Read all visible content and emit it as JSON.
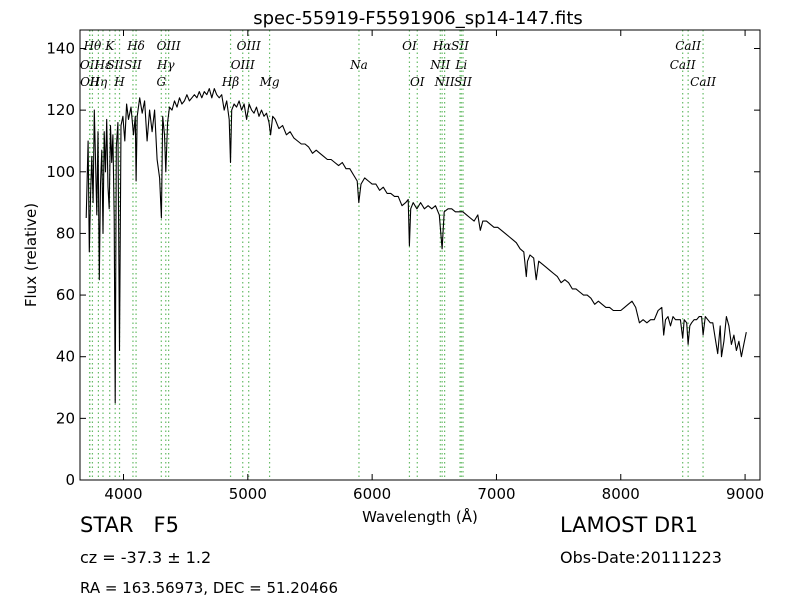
{
  "chart_data": {
    "type": "line",
    "title": "spec-55919-F5591906_sp14-147.fits",
    "xlabel": "Wavelength (Å)",
    "ylabel": "Flux (relative)",
    "xlim": [
      3650,
      9120
    ],
    "ylim": [
      0,
      146
    ],
    "xticks": [
      4000,
      5000,
      6000,
      7000,
      8000,
      9000
    ],
    "yticks": [
      0,
      20,
      40,
      60,
      80,
      100,
      120,
      140
    ],
    "grid": false,
    "line_color": "#000000",
    "marker_color": "#66bb66",
    "series": [
      {
        "values": [
          [
            3700,
            85
          ],
          [
            3715,
            110
          ],
          [
            3725,
            74
          ],
          [
            3735,
            93
          ],
          [
            3745,
            105
          ],
          [
            3755,
            90
          ],
          [
            3765,
            120
          ],
          [
            3775,
            104
          ],
          [
            3785,
            86
          ],
          [
            3795,
            113
          ],
          [
            3805,
            65
          ],
          [
            3815,
            96
          ],
          [
            3825,
            107
          ],
          [
            3835,
            80
          ],
          [
            3845,
            113
          ],
          [
            3855,
            100
          ],
          [
            3865,
            117
          ],
          [
            3875,
            95
          ],
          [
            3885,
            88
          ],
          [
            3895,
            115
          ],
          [
            3905,
            103
          ],
          [
            3915,
            112
          ],
          [
            3925,
            85
          ],
          [
            3933,
            25
          ],
          [
            3942,
            108
          ],
          [
            3955,
            116
          ],
          [
            3968,
            42
          ],
          [
            3980,
            115
          ],
          [
            3995,
            118
          ],
          [
            4010,
            110
          ],
          [
            4025,
            122
          ],
          [
            4040,
            117
          ],
          [
            4060,
            121
          ],
          [
            4080,
            112
          ],
          [
            4095,
            118
          ],
          [
            4101,
            97
          ],
          [
            4110,
            118
          ],
          [
            4130,
            124
          ],
          [
            4150,
            119
          ],
          [
            4170,
            123
          ],
          [
            4190,
            110
          ],
          [
            4210,
            120
          ],
          [
            4230,
            113
          ],
          [
            4250,
            120
          ],
          [
            4270,
            104
          ],
          [
            4290,
            98
          ],
          [
            4305,
            85
          ],
          [
            4315,
            118
          ],
          [
            4330,
            112
          ],
          [
            4340,
            100
          ],
          [
            4355,
            116
          ],
          [
            4370,
            121
          ],
          [
            4390,
            120
          ],
          [
            4410,
            123
          ],
          [
            4430,
            121
          ],
          [
            4450,
            124
          ],
          [
            4470,
            122
          ],
          [
            4490,
            123
          ],
          [
            4510,
            125
          ],
          [
            4530,
            123
          ],
          [
            4550,
            124
          ],
          [
            4570,
            125
          ],
          [
            4590,
            124
          ],
          [
            4610,
            126
          ],
          [
            4630,
            124
          ],
          [
            4650,
            126
          ],
          [
            4670,
            125
          ],
          [
            4690,
            127
          ],
          [
            4710,
            124
          ],
          [
            4730,
            127
          ],
          [
            4750,
            125
          ],
          [
            4770,
            124
          ],
          [
            4790,
            125
          ],
          [
            4810,
            120
          ],
          [
            4830,
            123
          ],
          [
            4850,
            117
          ],
          [
            4861,
            103
          ],
          [
            4870,
            120
          ],
          [
            4890,
            122
          ],
          [
            4910,
            121
          ],
          [
            4930,
            123
          ],
          [
            4950,
            120
          ],
          [
            4970,
            122
          ],
          [
            4990,
            117
          ],
          [
            5010,
            122
          ],
          [
            5030,
            120
          ],
          [
            5050,
            119
          ],
          [
            5070,
            121
          ],
          [
            5090,
            118
          ],
          [
            5110,
            120
          ],
          [
            5130,
            118
          ],
          [
            5150,
            119
          ],
          [
            5170,
            116
          ],
          [
            5183,
            112
          ],
          [
            5200,
            118
          ],
          [
            5220,
            117
          ],
          [
            5250,
            114
          ],
          [
            5280,
            115
          ],
          [
            5310,
            112
          ],
          [
            5340,
            113
          ],
          [
            5370,
            111
          ],
          [
            5400,
            110
          ],
          [
            5430,
            109
          ],
          [
            5460,
            109
          ],
          [
            5490,
            108
          ],
          [
            5520,
            106
          ],
          [
            5550,
            107
          ],
          [
            5580,
            106
          ],
          [
            5610,
            105
          ],
          [
            5640,
            104
          ],
          [
            5670,
            104
          ],
          [
            5700,
            103
          ],
          [
            5730,
            102
          ],
          [
            5760,
            103
          ],
          [
            5790,
            101
          ],
          [
            5820,
            101
          ],
          [
            5850,
            99
          ],
          [
            5880,
            97
          ],
          [
            5893,
            90
          ],
          [
            5910,
            96
          ],
          [
            5940,
            98
          ],
          [
            5970,
            97
          ],
          [
            6000,
            96
          ],
          [
            6030,
            96
          ],
          [
            6060,
            94
          ],
          [
            6090,
            95
          ],
          [
            6120,
            93
          ],
          [
            6150,
            93
          ],
          [
            6180,
            92
          ],
          [
            6210,
            92
          ],
          [
            6240,
            89
          ],
          [
            6270,
            90
          ],
          [
            6290,
            91
          ],
          [
            6300,
            76
          ],
          [
            6310,
            88
          ],
          [
            6330,
            90
          ],
          [
            6360,
            88
          ],
          [
            6390,
            90
          ],
          [
            6420,
            88
          ],
          [
            6450,
            89
          ],
          [
            6480,
            88
          ],
          [
            6510,
            89
          ],
          [
            6540,
            86
          ],
          [
            6563,
            75
          ],
          [
            6580,
            87
          ],
          [
            6610,
            88
          ],
          [
            6640,
            88
          ],
          [
            6670,
            87
          ],
          [
            6700,
            87
          ],
          [
            6730,
            87
          ],
          [
            6760,
            86
          ],
          [
            6790,
            85
          ],
          [
            6820,
            84
          ],
          [
            6850,
            86
          ],
          [
            6870,
            81
          ],
          [
            6890,
            84
          ],
          [
            6920,
            84
          ],
          [
            6950,
            83
          ],
          [
            6980,
            82
          ],
          [
            7010,
            82
          ],
          [
            7040,
            81
          ],
          [
            7070,
            80
          ],
          [
            7100,
            79
          ],
          [
            7130,
            78
          ],
          [
            7160,
            77
          ],
          [
            7190,
            75
          ],
          [
            7220,
            74
          ],
          [
            7240,
            66
          ],
          [
            7250,
            71
          ],
          [
            7270,
            73
          ],
          [
            7300,
            72
          ],
          [
            7320,
            65
          ],
          [
            7340,
            71
          ],
          [
            7370,
            70
          ],
          [
            7400,
            69
          ],
          [
            7430,
            68
          ],
          [
            7460,
            67
          ],
          [
            7490,
            66
          ],
          [
            7520,
            64
          ],
          [
            7550,
            65
          ],
          [
            7580,
            64
          ],
          [
            7610,
            62
          ],
          [
            7640,
            62
          ],
          [
            7670,
            61
          ],
          [
            7700,
            60
          ],
          [
            7730,
            60
          ],
          [
            7760,
            59
          ],
          [
            7790,
            57
          ],
          [
            7820,
            58
          ],
          [
            7850,
            57
          ],
          [
            7880,
            56
          ],
          [
            7910,
            56
          ],
          [
            7940,
            55
          ],
          [
            7970,
            55
          ],
          [
            8000,
            55
          ],
          [
            8030,
            56
          ],
          [
            8060,
            57
          ],
          [
            8090,
            58
          ],
          [
            8120,
            56
          ],
          [
            8150,
            51
          ],
          [
            8180,
            52
          ],
          [
            8210,
            51
          ],
          [
            8240,
            52
          ],
          [
            8270,
            52
          ],
          [
            8300,
            55
          ],
          [
            8330,
            56
          ],
          [
            8345,
            47
          ],
          [
            8360,
            52
          ],
          [
            8380,
            53
          ],
          [
            8400,
            50
          ],
          [
            8420,
            53
          ],
          [
            8440,
            52
          ],
          [
            8460,
            52
          ],
          [
            8480,
            52
          ],
          [
            8498,
            46
          ],
          [
            8510,
            52
          ],
          [
            8530,
            51
          ],
          [
            8542,
            44
          ],
          [
            8555,
            50
          ],
          [
            8570,
            51
          ],
          [
            8590,
            52
          ],
          [
            8610,
            52
          ],
          [
            8630,
            53
          ],
          [
            8650,
            53
          ],
          [
            8662,
            47
          ],
          [
            8680,
            53
          ],
          [
            8700,
            52
          ],
          [
            8720,
            51
          ],
          [
            8740,
            51
          ],
          [
            8760,
            46
          ],
          [
            8780,
            41
          ],
          [
            8800,
            50
          ],
          [
            8810,
            40
          ],
          [
            8830,
            45
          ],
          [
            8850,
            53
          ],
          [
            8870,
            50
          ],
          [
            8890,
            44
          ],
          [
            8910,
            47
          ],
          [
            8930,
            42
          ],
          [
            8950,
            45
          ],
          [
            8970,
            40
          ],
          [
            8990,
            44
          ],
          [
            9010,
            48
          ]
        ]
      }
    ],
    "line_markers": [
      {
        "wave": 3727,
        "label": "OII",
        "tier": 1
      },
      {
        "wave": 3729,
        "label": "OII",
        "tier": 2
      },
      {
        "wave": 3750,
        "label": "Hθ",
        "tier": 0
      },
      {
        "wave": 3798,
        "label": "Hη",
        "tier": 2
      },
      {
        "wave": 3835,
        "label": "Hε",
        "tier": 1
      },
      {
        "wave": 3889,
        "label": "K",
        "tier": 0
      },
      {
        "wave": 3933,
        "label": "SII",
        "tier": 1
      },
      {
        "wave": 3968,
        "label": "H",
        "tier": 2
      },
      {
        "wave": 4101,
        "label": "Hδ",
        "tier": 0
      },
      {
        "wave": 4076,
        "label": "SII",
        "tier": 1
      },
      {
        "wave": 4304,
        "label": "G",
        "tier": 2
      },
      {
        "wave": 4340,
        "label": "Hγ",
        "tier": 1
      },
      {
        "wave": 4363,
        "label": "OIII",
        "tier": 0
      },
      {
        "wave": 4861,
        "label": "Hβ",
        "tier": 2
      },
      {
        "wave": 4959,
        "label": "OIII",
        "tier": 1
      },
      {
        "wave": 5007,
        "label": "OIII",
        "tier": 0
      },
      {
        "wave": 5175,
        "label": "Mg",
        "tier": 2
      },
      {
        "wave": 5894,
        "label": "Na",
        "tier": 1
      },
      {
        "wave": 6300,
        "label": "OI",
        "tier": 0
      },
      {
        "wave": 6363,
        "label": "OI",
        "tier": 2
      },
      {
        "wave": 6548,
        "label": "NII",
        "tier": 1
      },
      {
        "wave": 6563,
        "label": "Hα",
        "tier": 0
      },
      {
        "wave": 6583,
        "label": "NII",
        "tier": 2
      },
      {
        "wave": 6707,
        "label": "SII",
        "tier": 0
      },
      {
        "wave": 6717,
        "label": "Li",
        "tier": 1
      },
      {
        "wave": 6731,
        "label": "SII",
        "tier": 2
      },
      {
        "wave": 8498,
        "label": "CaII",
        "tier": 1
      },
      {
        "wave": 8542,
        "label": "CaII",
        "tier": 0
      },
      {
        "wave": 8662,
        "label": "CaII",
        "tier": 2
      }
    ]
  },
  "footer": {
    "object_class": "STAR   F5",
    "survey": "LAMOST DR1",
    "redshift": "cz = -37.3 ± 1.2",
    "obs_date": "Obs-Date:20111223",
    "coords": "RA = 163.56973, DEC = 51.20466"
  }
}
